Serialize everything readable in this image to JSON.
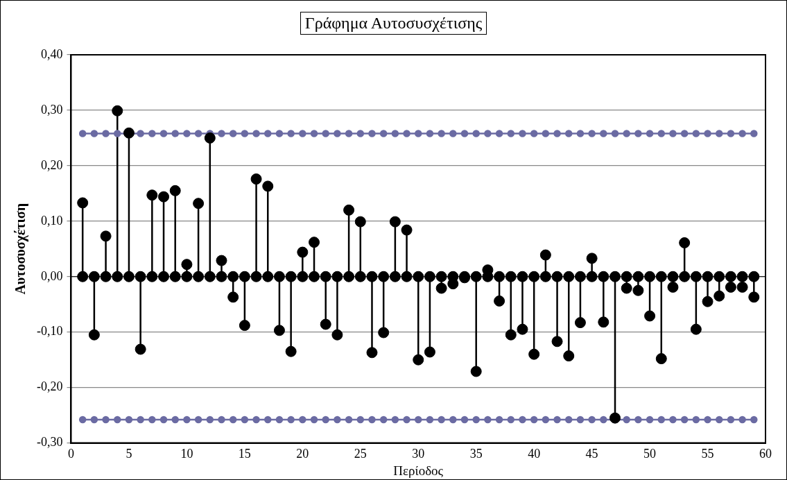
{
  "chart_data": {
    "type": "lollipop",
    "title": "Γράφημα Αυτοσυσχέτισης",
    "xlabel": "Περίοδος",
    "ylabel": "Αυτοσυσχέτιση",
    "x": [
      1,
      2,
      3,
      4,
      5,
      6,
      7,
      8,
      9,
      10,
      11,
      12,
      13,
      14,
      15,
      16,
      17,
      18,
      19,
      20,
      21,
      22,
      23,
      24,
      25,
      26,
      27,
      28,
      29,
      30,
      31,
      32,
      33,
      34,
      35,
      36,
      37,
      38,
      39,
      40,
      41,
      42,
      43,
      44,
      45,
      46,
      47,
      48,
      49,
      50,
      51,
      52,
      53,
      54,
      55,
      56,
      57,
      58,
      59
    ],
    "series": [
      {
        "color": "#000000",
        "values": [
          0.133,
          -0.105,
          0.073,
          0.299,
          0.259,
          -0.131,
          0.147,
          0.144,
          0.155,
          0.022,
          0.132,
          0.25,
          0.029,
          -0.037,
          -0.088,
          0.176,
          0.163,
          -0.097,
          -0.135,
          0.044,
          0.062,
          -0.086,
          -0.105,
          0.12,
          0.099,
          -0.137,
          -0.101,
          0.099,
          0.084,
          -0.15,
          -0.136,
          -0.021,
          -0.013,
          -0.002,
          -0.171,
          0.012,
          -0.044,
          -0.105,
          -0.095,
          -0.14,
          0.039,
          -0.117,
          -0.143,
          -0.083,
          0.033,
          -0.082,
          -0.255,
          -0.021,
          -0.025,
          -0.071,
          -0.148,
          -0.019,
          0.061,
          -0.095,
          -0.045,
          -0.035,
          -0.019,
          -0.019,
          -0.037
        ]
      },
      {
        "type": "scatter",
        "color": "#000000",
        "values": [
          0,
          0,
          0,
          0,
          0,
          0,
          0,
          0,
          0,
          0,
          0,
          0,
          0,
          0,
          0,
          0,
          0,
          0,
          0,
          0,
          0,
          0,
          0,
          0,
          0,
          0,
          0,
          0,
          0,
          0,
          0,
          0,
          0,
          0,
          0,
          0,
          0,
          0,
          0,
          0,
          0,
          0,
          0,
          0,
          0,
          0,
          0,
          0,
          0,
          0,
          0,
          0,
          0,
          0,
          0,
          0,
          0,
          0,
          0
        ]
      },
      {
        "type": "line",
        "color": "#6b6ba3",
        "values": [
          0.258,
          0.258,
          0.258,
          0.258,
          0.258,
          0.258,
          0.258,
          0.258,
          0.258,
          0.258,
          0.258,
          0.258,
          0.258,
          0.258,
          0.258,
          0.258,
          0.258,
          0.258,
          0.258,
          0.258,
          0.258,
          0.258,
          0.258,
          0.258,
          0.258,
          0.258,
          0.258,
          0.258,
          0.258,
          0.258,
          0.258,
          0.258,
          0.258,
          0.258,
          0.258,
          0.258,
          0.258,
          0.258,
          0.258,
          0.258,
          0.258,
          0.258,
          0.258,
          0.258,
          0.258,
          0.258,
          0.258,
          0.258,
          0.258,
          0.258,
          0.258,
          0.258,
          0.258,
          0.258,
          0.258,
          0.258,
          0.258,
          0.258,
          0.258
        ]
      },
      {
        "type": "line",
        "color": "#6b6ba3",
        "values": [
          -0.258,
          -0.258,
          -0.258,
          -0.258,
          -0.258,
          -0.258,
          -0.258,
          -0.258,
          -0.258,
          -0.258,
          -0.258,
          -0.258,
          -0.258,
          -0.258,
          -0.258,
          -0.258,
          -0.258,
          -0.258,
          -0.258,
          -0.258,
          -0.258,
          -0.258,
          -0.258,
          -0.258,
          -0.258,
          -0.258,
          -0.258,
          -0.258,
          -0.258,
          -0.258,
          -0.258,
          -0.258,
          -0.258,
          -0.258,
          -0.258,
          -0.258,
          -0.258,
          -0.258,
          -0.258,
          -0.258,
          -0.258,
          -0.258,
          -0.258,
          -0.258,
          -0.258,
          -0.258,
          -0.258,
          -0.258,
          -0.258,
          -0.258,
          -0.258,
          -0.258,
          -0.258,
          -0.258,
          -0.258,
          -0.258,
          -0.258,
          -0.258,
          -0.258
        ]
      }
    ],
    "xlim": [
      0,
      60
    ],
    "xticks": [
      0,
      5,
      10,
      15,
      20,
      25,
      30,
      35,
      40,
      45,
      50,
      55,
      60
    ],
    "ylim": [
      -0.3,
      0.4
    ],
    "yticks": [
      {
        "value": -0.3,
        "label": "-0,30"
      },
      {
        "value": -0.2,
        "label": "-0,20"
      },
      {
        "value": -0.1,
        "label": "-0,10"
      },
      {
        "value": 0,
        "label": "0,00"
      },
      {
        "value": 0.1,
        "label": "0,10"
      },
      {
        "value": 0.2,
        "label": "0,20"
      },
      {
        "value": 0.3,
        "label": "0,30"
      },
      {
        "value": 0.4,
        "label": "0,40"
      }
    ],
    "grid": "y",
    "marker": "circle"
  }
}
